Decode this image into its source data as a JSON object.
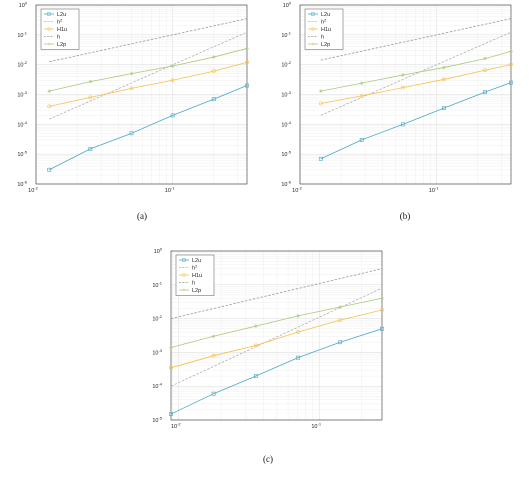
{
  "figure": {
    "panels": [
      {
        "caption": "(a)"
      },
      {
        "caption": "(b)"
      },
      {
        "caption": "(c)"
      }
    ]
  },
  "chart_data": [
    {
      "type": "line",
      "log_scale": {
        "x": true,
        "y": true
      },
      "grid": true,
      "legend_placement": "top-left",
      "xlim": [
        0.01,
        0.35
      ],
      "ylim": [
        1e-06,
        1
      ],
      "x_ticks": [
        {
          "base": "10",
          "exp": "-2",
          "value": 0.01
        },
        {
          "base": "10",
          "exp": "-1",
          "value": 0.1
        }
      ],
      "y_ticks": [
        {
          "base": "10",
          "exp": "-6",
          "value": 1e-06
        },
        {
          "base": "10",
          "exp": "-5",
          "value": 1e-05
        },
        {
          "base": "10",
          "exp": "-4",
          "value": 0.0001
        },
        {
          "base": "10",
          "exp": "-3",
          "value": 0.001
        },
        {
          "base": "10",
          "exp": "-2",
          "value": 0.01
        },
        {
          "base": "10",
          "exp": "-1",
          "value": 0.1
        },
        {
          "base": "10",
          "exp": "0",
          "value": 1
        }
      ],
      "series": [
        {
          "name": "L2u",
          "color": "#4aa8c7",
          "style": "solid",
          "marker": "square",
          "x": [
            0.0125,
            0.025,
            0.05,
            0.1,
            0.2,
            0.35
          ],
          "y": [
            3e-06,
            1.5e-05,
            5e-05,
            0.0002,
            0.0007,
            0.002
          ]
        },
        {
          "name": "h²",
          "label_base": "h",
          "label_sup": "2",
          "color": "#b0b0b0",
          "style": "dashed",
          "marker": "none",
          "x": [
            0.0125,
            0.35
          ],
          "y": [
            0.00015,
            0.1225
          ]
        },
        {
          "name": "H1u",
          "color": "#f5c04e",
          "style": "solid",
          "marker": "circle",
          "x": [
            0.0125,
            0.025,
            0.05,
            0.1,
            0.2,
            0.35
          ],
          "y": [
            0.0004,
            0.0008,
            0.0016,
            0.003,
            0.006,
            0.012
          ]
        },
        {
          "name": "h",
          "color": "#9a9a9a",
          "style": "dashed",
          "marker": "none",
          "x": [
            0.0125,
            0.35
          ],
          "y": [
            0.0125,
            0.35
          ]
        },
        {
          "name": "L2p",
          "color": "#a9c97b",
          "style": "solid",
          "marker": "star",
          "x": [
            0.0125,
            0.025,
            0.05,
            0.1,
            0.2,
            0.35
          ],
          "y": [
            0.0013,
            0.0027,
            0.005,
            0.009,
            0.018,
            0.035
          ]
        }
      ]
    },
    {
      "type": "line",
      "log_scale": {
        "x": true,
        "y": true
      },
      "grid": true,
      "legend_placement": "top-left",
      "xlim": [
        0.01,
        0.35
      ],
      "ylim": [
        1e-06,
        1
      ],
      "x_ticks": [
        {
          "base": "10",
          "exp": "-2",
          "value": 0.01
        },
        {
          "base": "10",
          "exp": "-1",
          "value": 0.1
        }
      ],
      "y_ticks": [
        {
          "base": "10",
          "exp": "-6",
          "value": 1e-06
        },
        {
          "base": "10",
          "exp": "-5",
          "value": 1e-05
        },
        {
          "base": "10",
          "exp": "-4",
          "value": 0.0001
        },
        {
          "base": "10",
          "exp": "-3",
          "value": 0.001
        },
        {
          "base": "10",
          "exp": "-2",
          "value": 0.01
        },
        {
          "base": "10",
          "exp": "-1",
          "value": 0.1
        },
        {
          "base": "10",
          "exp": "0",
          "value": 1
        }
      ],
      "series": [
        {
          "name": "L2u",
          "color": "#4aa8c7",
          "style": "solid",
          "marker": "square",
          "x": [
            0.0142,
            0.0283,
            0.0566,
            0.113,
            0.226,
            0.35
          ],
          "y": [
            7e-06,
            3e-05,
            0.0001,
            0.00035,
            0.0012,
            0.0025
          ]
        },
        {
          "name": "h²",
          "label_base": "h",
          "label_sup": "2",
          "color": "#b0b0b0",
          "style": "dashed",
          "marker": "none",
          "x": [
            0.0142,
            0.35
          ],
          "y": [
            0.0002,
            0.1225
          ]
        },
        {
          "name": "H1u",
          "color": "#f5c04e",
          "style": "solid",
          "marker": "circle",
          "x": [
            0.0142,
            0.0283,
            0.0566,
            0.113,
            0.226,
            0.35
          ],
          "y": [
            0.0005,
            0.0009,
            0.0017,
            0.0032,
            0.0065,
            0.01
          ]
        },
        {
          "name": "h",
          "color": "#9a9a9a",
          "style": "dashed",
          "marker": "none",
          "x": [
            0.0142,
            0.35
          ],
          "y": [
            0.0142,
            0.35
          ]
        },
        {
          "name": "L2p",
          "color": "#a9c97b",
          "style": "solid",
          "marker": "star",
          "x": [
            0.0142,
            0.0283,
            0.0566,
            0.113,
            0.226,
            0.35
          ],
          "y": [
            0.0013,
            0.0024,
            0.0045,
            0.008,
            0.016,
            0.028
          ]
        }
      ]
    },
    {
      "type": "line",
      "log_scale": {
        "x": true,
        "y": true
      },
      "grid": true,
      "legend_placement": "top-left",
      "xlim": [
        0.0088,
        0.28
      ],
      "ylim": [
        1e-05,
        1
      ],
      "x_ticks": [
        {
          "base": "10",
          "exp": "-2",
          "value": 0.01
        },
        {
          "base": "10",
          "exp": "-1",
          "value": 0.1
        }
      ],
      "y_ticks": [
        {
          "base": "10",
          "exp": "-5",
          "value": 1e-05
        },
        {
          "base": "10",
          "exp": "-4",
          "value": 0.0001
        },
        {
          "base": "10",
          "exp": "-3",
          "value": 0.001
        },
        {
          "base": "10",
          "exp": "-2",
          "value": 0.01
        },
        {
          "base": "10",
          "exp": "-1",
          "value": 0.1
        },
        {
          "base": "10",
          "exp": "0",
          "value": 1
        }
      ],
      "series": [
        {
          "name": "L2u",
          "color": "#4aa8c7",
          "style": "solid",
          "marker": "square",
          "x": [
            0.0088,
            0.0177,
            0.0354,
            0.0707,
            0.141,
            0.28
          ],
          "y": [
            1.5e-05,
            6e-05,
            0.0002,
            0.0007,
            0.002,
            0.005
          ]
        },
        {
          "name": "h²",
          "label_base": "h",
          "label_sup": "2",
          "color": "#b0b0b0",
          "style": "dashed",
          "marker": "none",
          "x": [
            0.0088,
            0.28
          ],
          "y": [
            0.0001,
            0.08
          ]
        },
        {
          "name": "H1u",
          "color": "#f5c04e",
          "style": "solid",
          "marker": "circle",
          "x": [
            0.0088,
            0.0177,
            0.0354,
            0.0707,
            0.141,
            0.28
          ],
          "y": [
            0.00035,
            0.0008,
            0.0016,
            0.004,
            0.009,
            0.018
          ]
        },
        {
          "name": "h",
          "color": "#9a9a9a",
          "style": "dashed",
          "marker": "none",
          "x": [
            0.0088,
            0.28
          ],
          "y": [
            0.01,
            0.3
          ]
        },
        {
          "name": "L2p",
          "color": "#a9c97b",
          "style": "solid",
          "marker": "star",
          "x": [
            0.0088,
            0.0177,
            0.0354,
            0.0707,
            0.141,
            0.28
          ],
          "y": [
            0.0014,
            0.003,
            0.006,
            0.012,
            0.022,
            0.04
          ]
        }
      ]
    }
  ]
}
